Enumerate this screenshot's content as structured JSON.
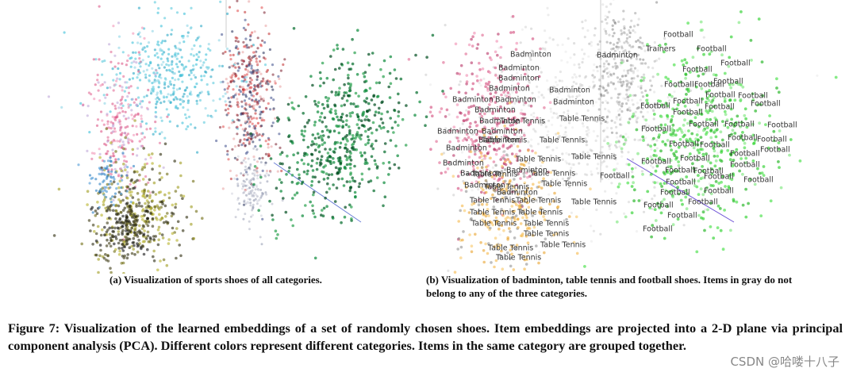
{
  "panel_a": {
    "caption": "(a) Visualization of sports shoes of all categories."
  },
  "panel_b": {
    "caption": "(b) Visualization of badminton, table tennis and football shoes. Items in gray do not belong to any of the three categories.",
    "labels": [
      "Badminton",
      "Badminton",
      "Badminton",
      "Badminton",
      "Badminton",
      "Badminton",
      "Badminton",
      "Badminton",
      "Badminton",
      "Badminton",
      "Badminton",
      "Badminton",
      "Badminton",
      "Badminton",
      "Badminton",
      "Badminton",
      "Badminton",
      "Badminton",
      "Badminton",
      "Badminton",
      "Table Tennis",
      "Table Tennis",
      "Table Tennis",
      "Table Tennis",
      "Table Tennis",
      "Table Tennis",
      "Table Tennis",
      "Table Tennis",
      "Table Tennis",
      "Table Tennis",
      "Table Tennis",
      "Table Tennis",
      "Table Tennis",
      "Table Tennis",
      "Table Tennis",
      "Table Tennis",
      "Table Tennis",
      "Table Tennis",
      "Table Tennis",
      "Table Tennis",
      "Table Tennis",
      "Trainers",
      "Football",
      "Football",
      "Football",
      "Football",
      "Football",
      "Football",
      "Football",
      "Football",
      "Football",
      "Football",
      "Football",
      "Football",
      "Football",
      "Football",
      "Football",
      "Football",
      "Football",
      "Football",
      "Football",
      "Football",
      "Football",
      "Football",
      "Football",
      "Football",
      "Football",
      "Football",
      "Football",
      "Football",
      "Football",
      "Football",
      "Football",
      "Football",
      "Football",
      "Football",
      "Football",
      "Football",
      "Football",
      "Football",
      "Football"
    ]
  },
  "figure_caption": "Figure 7: Visualization of the learned embeddings of a set of randomly chosen shoes. Item embeddings are projected into a 2-D plane via principal component analysis (PCA). Different colors represent different categories. Items in the same category are grouped together.",
  "watermark": "CSDN @哈喽十八子"
}
